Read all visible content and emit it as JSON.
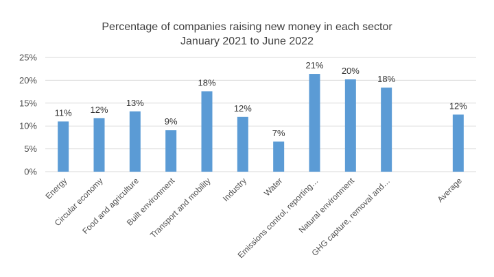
{
  "chart_data": {
    "type": "bar",
    "title_lines": [
      "Percentage of companies raising new money in each sector",
      "January 2021 to June 2022"
    ],
    "categories": [
      "Energy",
      "Circular economy",
      "Food and agriculture",
      "Built environment",
      "Transport and mobility",
      "Industry",
      "Water",
      "Emissions control, reporting…",
      "Natural environment",
      "GHG capture, removal and…",
      "",
      "Average"
    ],
    "values": [
      11,
      11.7,
      13.2,
      9.1,
      17.6,
      12,
      6.6,
      21.4,
      20.2,
      18.4,
      null,
      12.5
    ],
    "data_labels": [
      "11%",
      "12%",
      "13%",
      "9%",
      "18%",
      "12%",
      "7%",
      "21%",
      "20%",
      "18%",
      "",
      "12%"
    ],
    "ylim": [
      0,
      25
    ],
    "yticks": [
      0,
      5,
      10,
      15,
      20,
      25
    ],
    "ytick_labels": [
      "0%",
      "5%",
      "10%",
      "15%",
      "20%",
      "25%"
    ],
    "xlabel": "",
    "ylabel": "",
    "grid": true,
    "legend": "none",
    "colors": {
      "bar": "#5B9BD5",
      "grid": "#D9D9D9",
      "text": "#404040"
    }
  }
}
